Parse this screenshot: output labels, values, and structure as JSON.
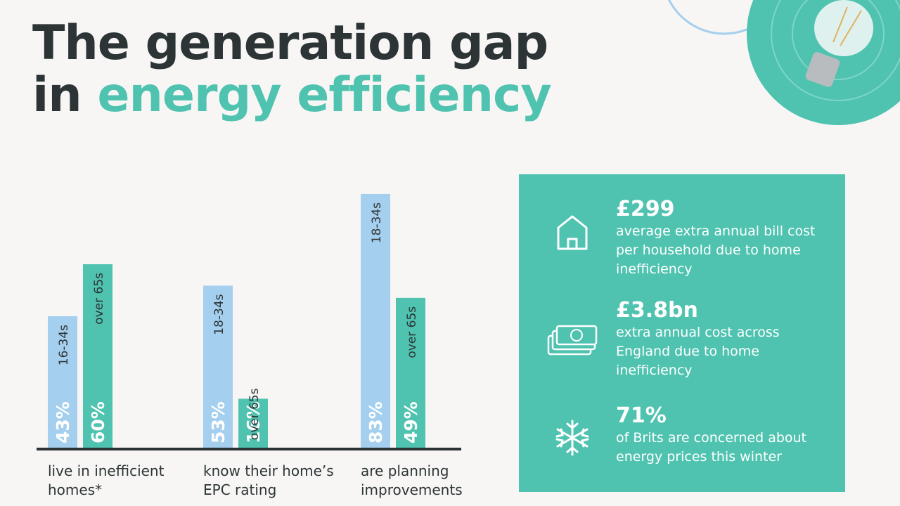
{
  "chart_data": {
    "type": "bar",
    "title_line1": "The generation gap",
    "title_prefix": "in",
    "title_highlight": "energy efficiency",
    "categories": [
      "live in inefficient homes*",
      "know their home’s EPC rating",
      "are planning improvements"
    ],
    "series": [
      {
        "color": "#a5cfee",
        "labels": [
          "16-34s",
          "18-34s",
          "18-34s"
        ],
        "values": [
          43,
          53,
          83
        ],
        "value_labels": [
          "43%",
          "53%",
          "83%"
        ]
      },
      {
        "color": "#4fc3b0",
        "labels": [
          "over 65s",
          "over 65s",
          "over 65s"
        ],
        "values": [
          60,
          16,
          49
        ],
        "value_labels": [
          "60%",
          "16%",
          "49%"
        ]
      }
    ]
  },
  "stats": [
    {
      "value": "£299",
      "description": "average extra annual bill cost per household due to home inefficiency"
    },
    {
      "value": "£3.8bn",
      "description": "extra annual cost across England due to home inefficiency"
    },
    {
      "value": "71%",
      "description": "of Brits are concerned about energy prices this winter"
    }
  ]
}
